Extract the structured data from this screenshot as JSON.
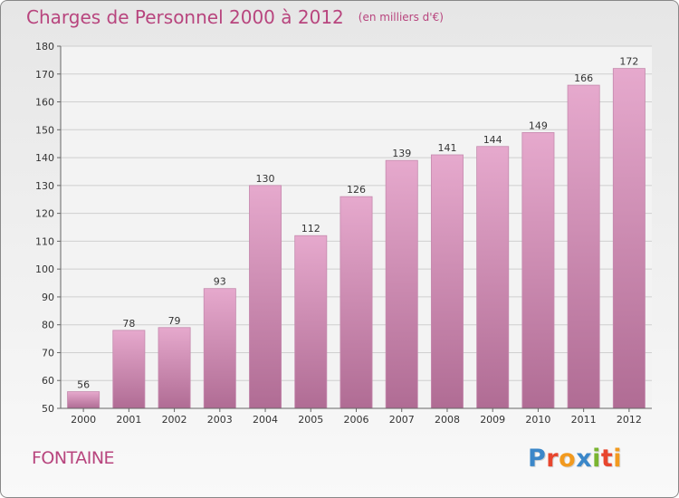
{
  "header": {
    "title": "Charges de Personnel 2000 à 2012",
    "subtitle": "(en milliers d'€)"
  },
  "footer": {
    "city": "FONTAINE",
    "logo_text": "Proxiti",
    "logo_colors": [
      "#3b87c9",
      "#e8462e",
      "#f29a1f",
      "#3b87c9",
      "#7ab530",
      "#e8462e",
      "#f29a1f"
    ]
  },
  "colors": {
    "bar_top": "#e6a9cd",
    "bar_bottom": "#b06c94",
    "title": "#b8457e",
    "grid": "#cfcfcf"
  },
  "chart_data": {
    "type": "bar",
    "title": "Charges de Personnel 2000 à 2012",
    "subtitle": "(en milliers d'€)",
    "categories": [
      "2000",
      "2001",
      "2002",
      "2003",
      "2004",
      "2005",
      "2006",
      "2007",
      "2008",
      "2009",
      "2010",
      "2011",
      "2012"
    ],
    "values": [
      56,
      78,
      79,
      93,
      130,
      112,
      126,
      139,
      141,
      144,
      149,
      166,
      172
    ],
    "ylim": [
      50,
      180
    ],
    "yticks": [
      50,
      60,
      70,
      80,
      90,
      100,
      110,
      120,
      130,
      140,
      150,
      160,
      170,
      180
    ],
    "grid": true,
    "data_labels": true
  }
}
